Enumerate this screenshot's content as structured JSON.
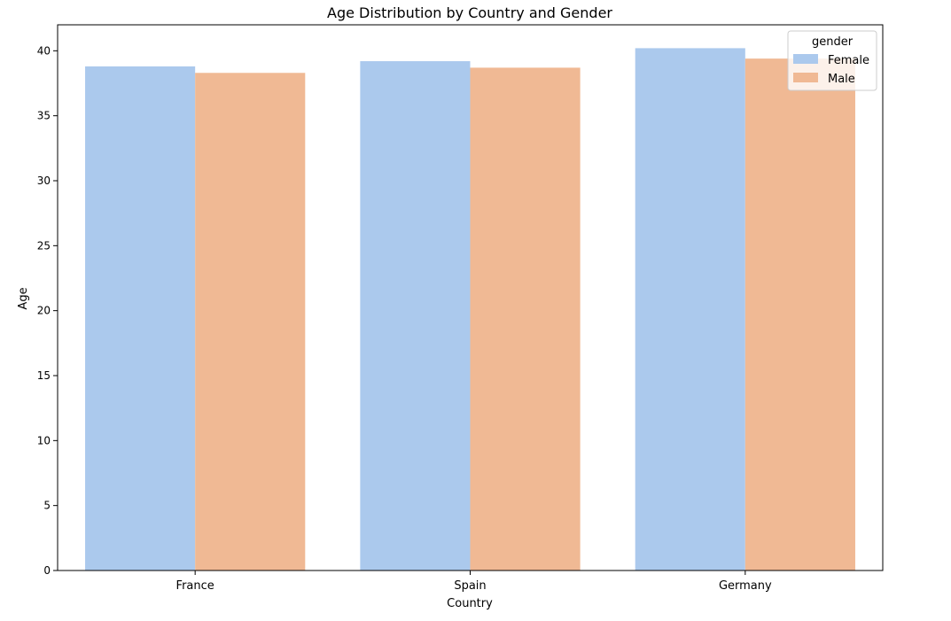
{
  "chart_data": {
    "type": "bar",
    "title": "Age Distribution by Country and Gender",
    "xlabel": "Country",
    "ylabel": "Age",
    "categories": [
      "France",
      "Spain",
      "Germany"
    ],
    "series": [
      {
        "name": "Female",
        "values": [
          38.8,
          39.2,
          40.2
        ],
        "color": "#abc9ed"
      },
      {
        "name": "Male",
        "values": [
          38.3,
          38.7,
          39.4
        ],
        "color": "#f0b994"
      }
    ],
    "ylim": [
      0,
      42
    ],
    "yticks": [
      0,
      5,
      10,
      15,
      20,
      25,
      30,
      35,
      40
    ],
    "legend": {
      "title": "gender",
      "placement": "top-right"
    },
    "grid": false
  }
}
